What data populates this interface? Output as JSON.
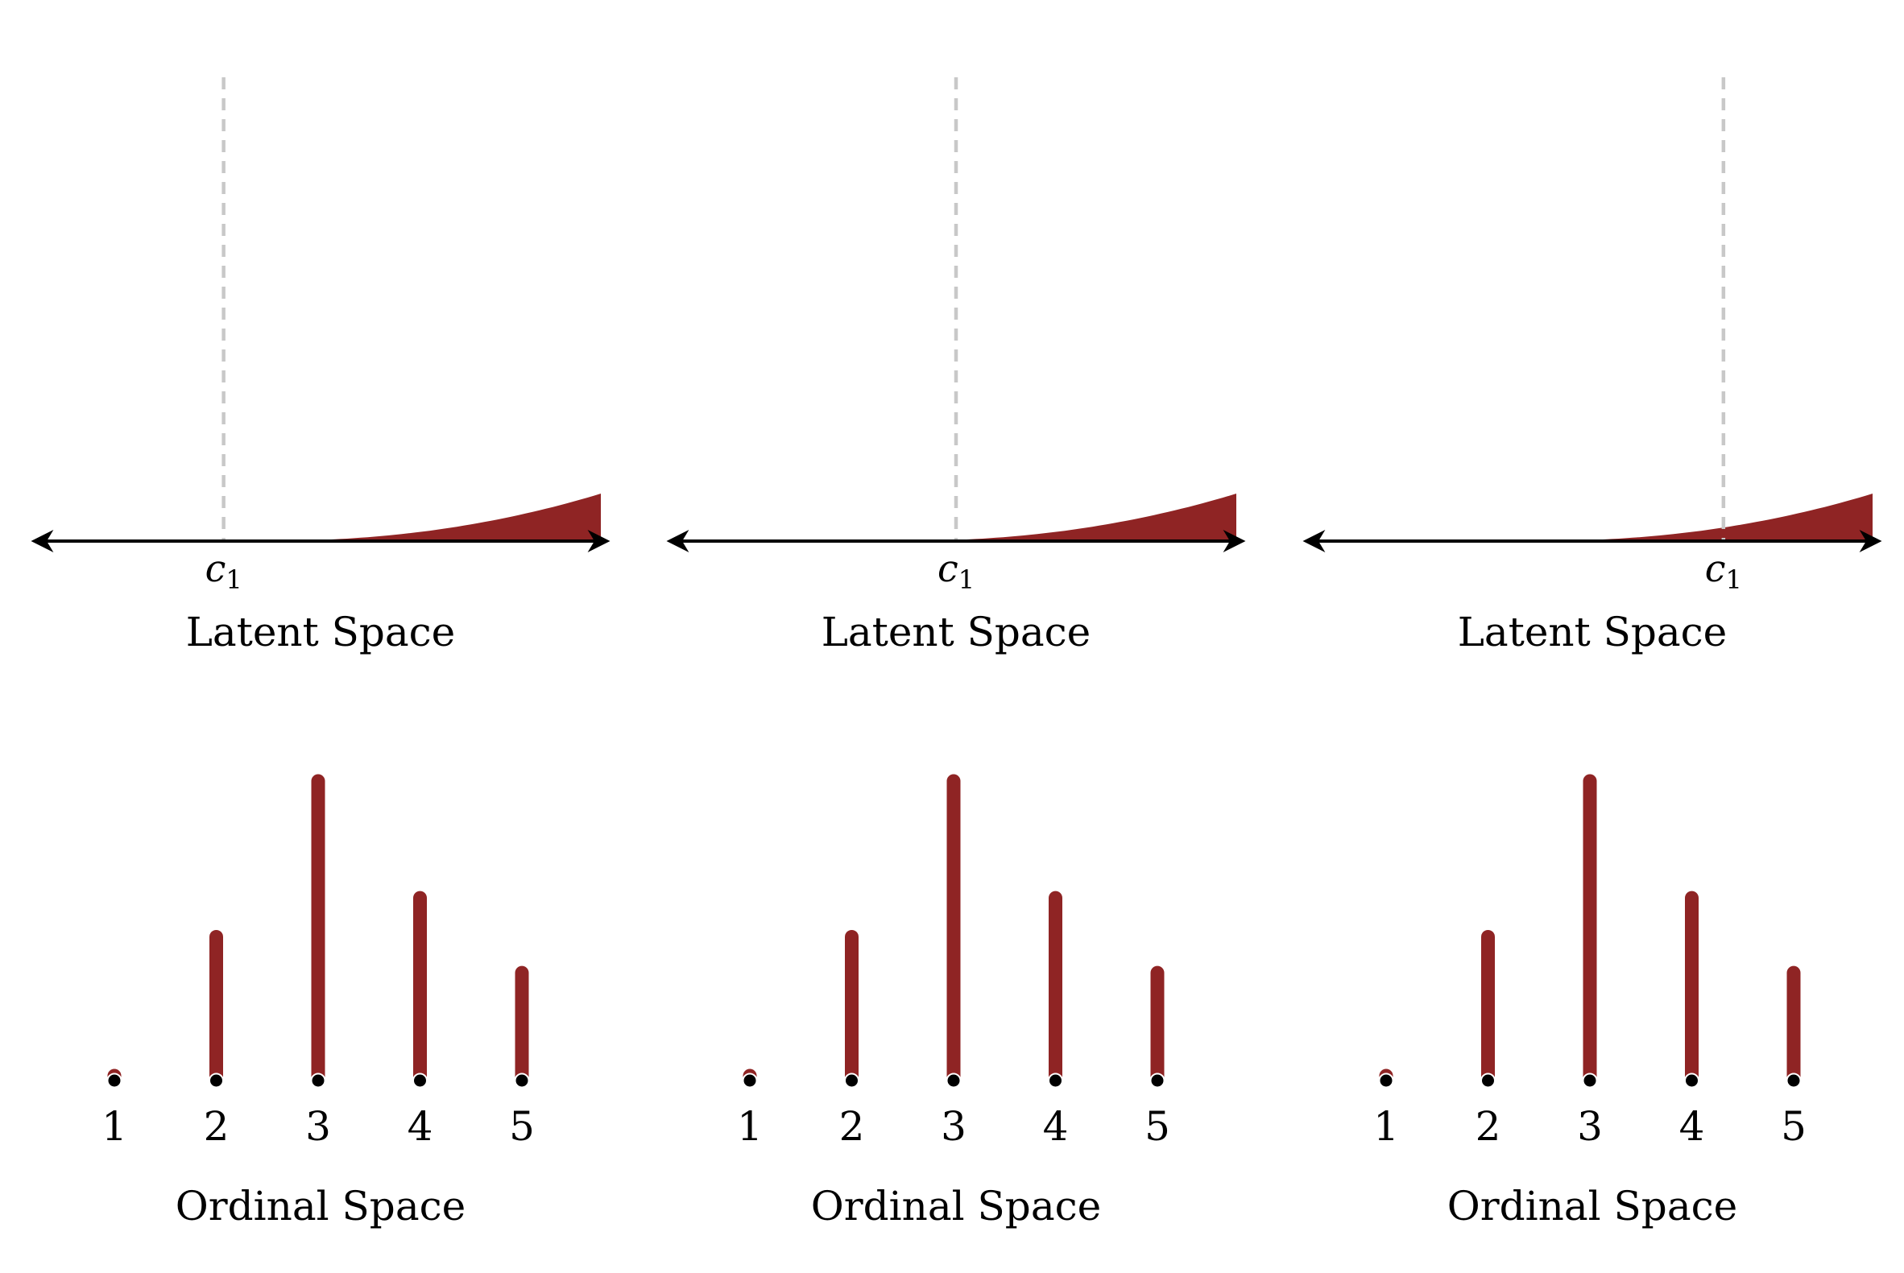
{
  "colors": {
    "fill": "#8f2424",
    "axis": "#000000",
    "cutpoint": "#c8c8c8",
    "point": "#000000"
  },
  "panels": [
    {
      "latent": {
        "label": "Latent Space",
        "cutpoint_label": "c",
        "cutpoint_subscript": "1",
        "cutpoint_position": 0.33,
        "density_tail": "right"
      },
      "ordinal": {
        "label": "Ordinal Space",
        "categories": [
          "1",
          "2",
          "3",
          "4",
          "5"
        ],
        "probabilities": [
          0.01,
          0.48,
          1.0,
          0.61,
          0.36
        ]
      }
    },
    {
      "latent": {
        "label": "Latent Space",
        "cutpoint_label": "c",
        "cutpoint_subscript": "1",
        "cutpoint_position": 0.5,
        "density_tail": "right"
      },
      "ordinal": {
        "label": "Ordinal Space",
        "categories": [
          "1",
          "2",
          "3",
          "4",
          "5"
        ],
        "probabilities": [
          0.01,
          0.48,
          1.0,
          0.61,
          0.36
        ]
      }
    },
    {
      "latent": {
        "label": "Latent Space",
        "cutpoint_label": "c",
        "cutpoint_subscript": "1",
        "cutpoint_position": 0.73,
        "density_tail": "right"
      },
      "ordinal": {
        "label": "Ordinal Space",
        "categories": [
          "1",
          "2",
          "3",
          "4",
          "5"
        ],
        "probabilities": [
          0.01,
          0.48,
          1.0,
          0.61,
          0.36
        ]
      }
    }
  ]
}
